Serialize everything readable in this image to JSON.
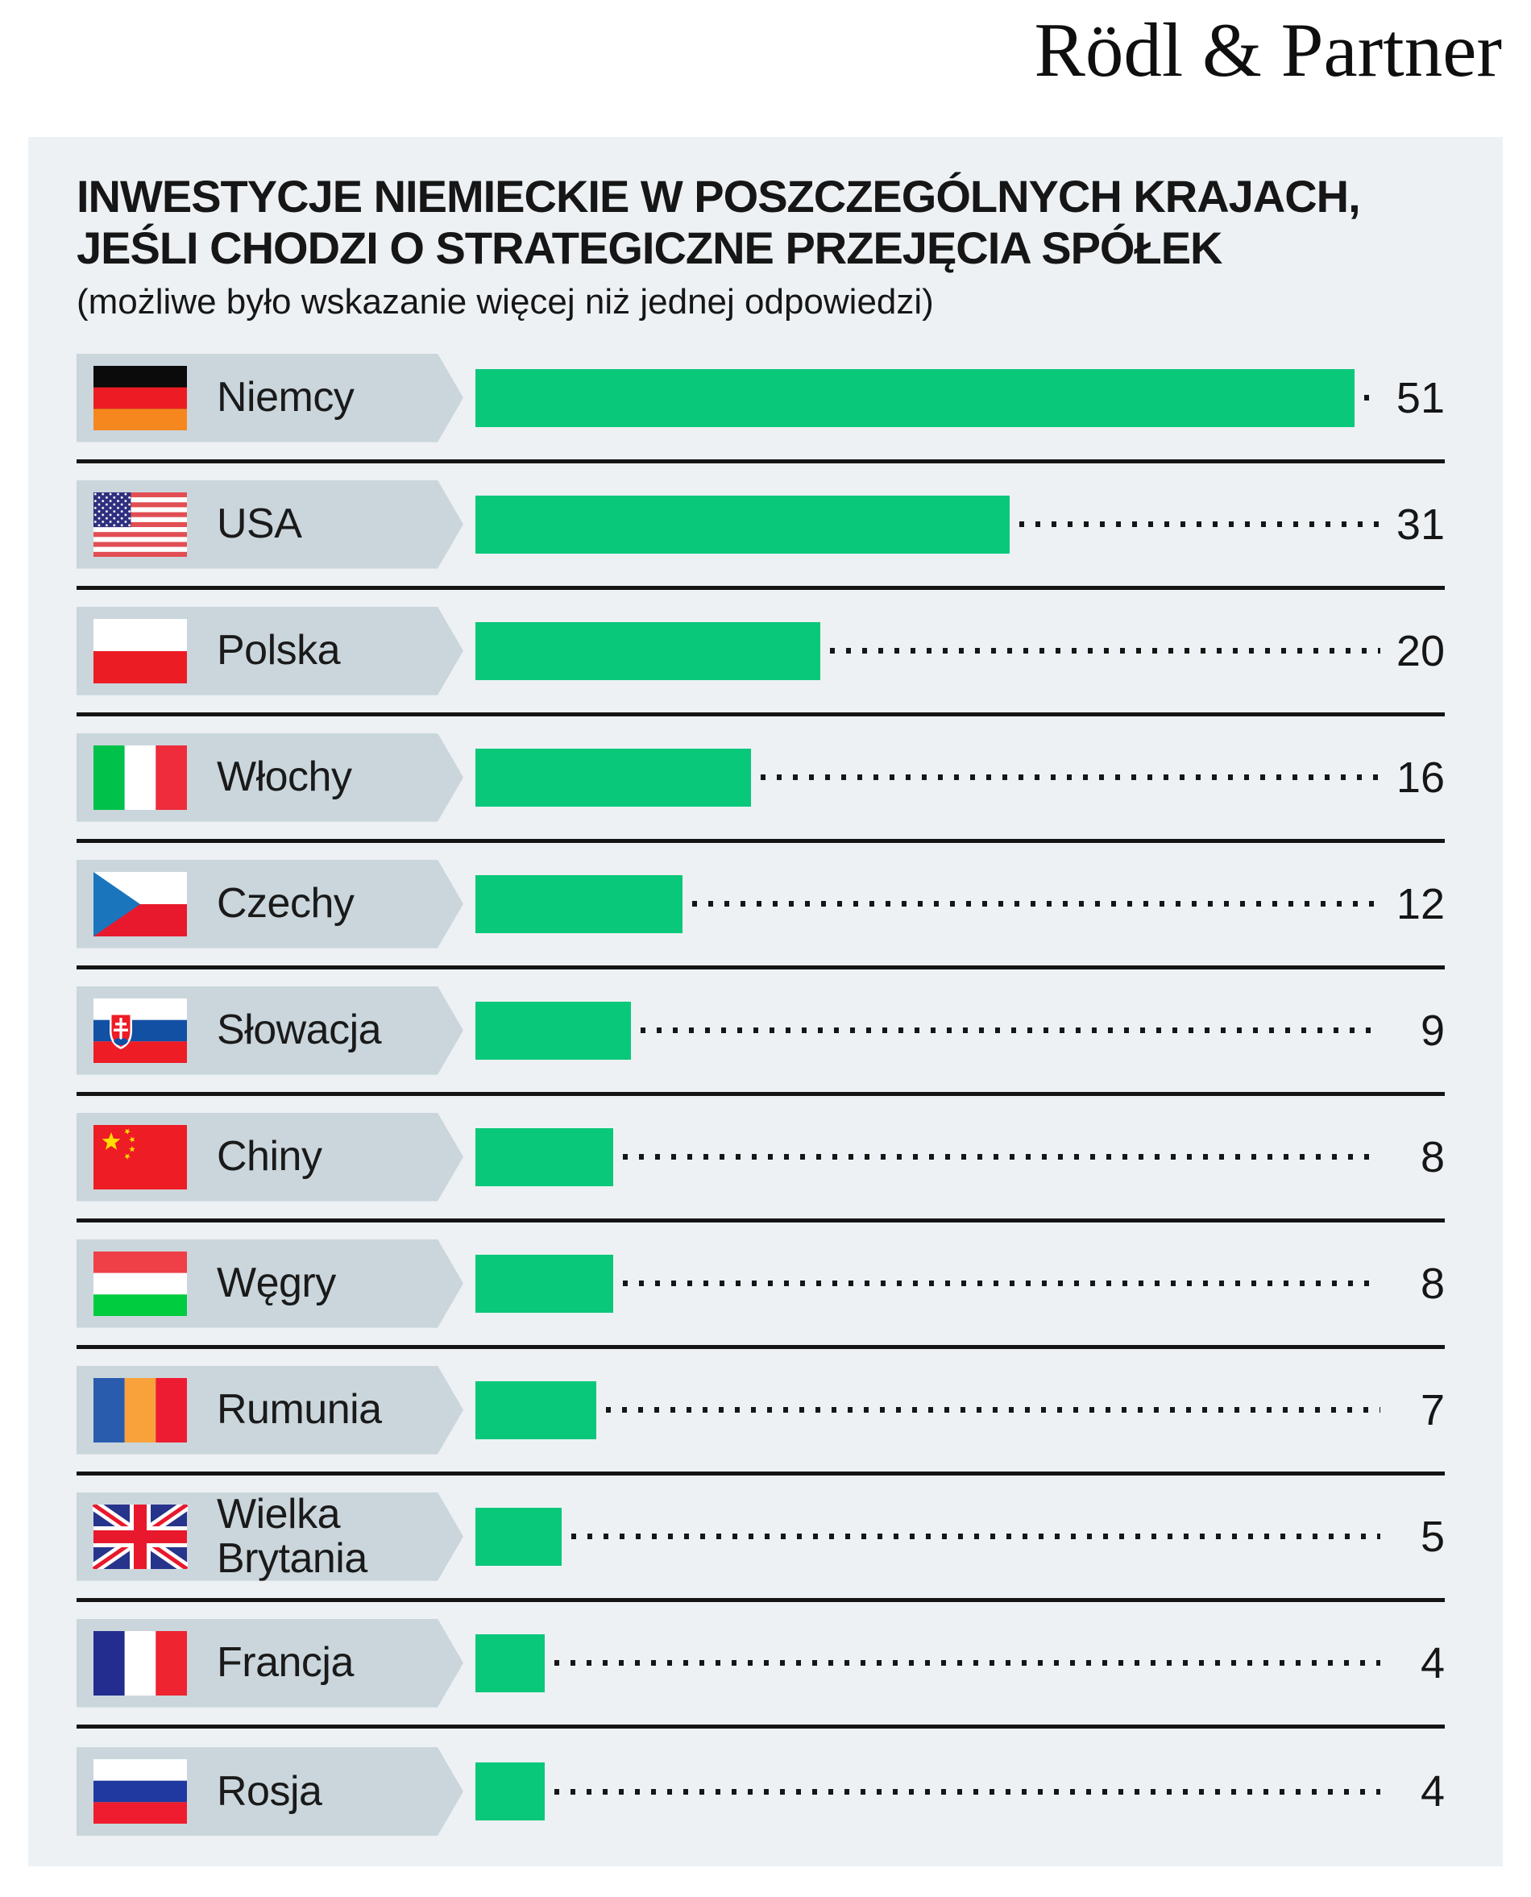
{
  "logo": "Rödl & Partner",
  "header": {
    "title_line1": "INWESTYCJE NIEMIECKIE W POSZCZEGÓLNYCH KRAJACH,",
    "title_line2": "JEŚLI CHODZI O STRATEGICZNE PRZEJĘCIA SPÓŁEK",
    "subtitle": "(możliwe było wskazanie więcej niż jednej odpowiedzi)"
  },
  "colors": {
    "bar": "#0ac87a",
    "label_box": "#cad6dc",
    "panel_bg": "#edf1f4",
    "separator": "#141414"
  },
  "chart_data": {
    "type": "bar",
    "orientation": "horizontal",
    "title": "INWESTYCJE NIEMIECKIE W POSZCZEGÓLNYCH KRAJACH, JEŚLI CHODZI O STRATEGICZNE PRZEJĘCIA SPÓŁEK",
    "subtitle": "(możliwe było wskazanie więcej niż jednej odpowiedzi)",
    "categories": [
      "Niemcy",
      "USA",
      "Polska",
      "Włochy",
      "Czechy",
      "Słowacja",
      "Chiny",
      "Węgry",
      "Rumunia",
      "Wielka Brytania",
      "Francja",
      "Rosja"
    ],
    "values": [
      51,
      31,
      20,
      16,
      12,
      9,
      8,
      8,
      7,
      5,
      4,
      4
    ],
    "flags": [
      "germany",
      "usa",
      "poland",
      "italy",
      "czechia",
      "slovakia",
      "china",
      "hungary",
      "romania",
      "uk",
      "france",
      "russia"
    ],
    "xlim": [
      0,
      51
    ],
    "grid": false,
    "legend": "none",
    "value_labels": "right-of-bar with dotted leader"
  }
}
